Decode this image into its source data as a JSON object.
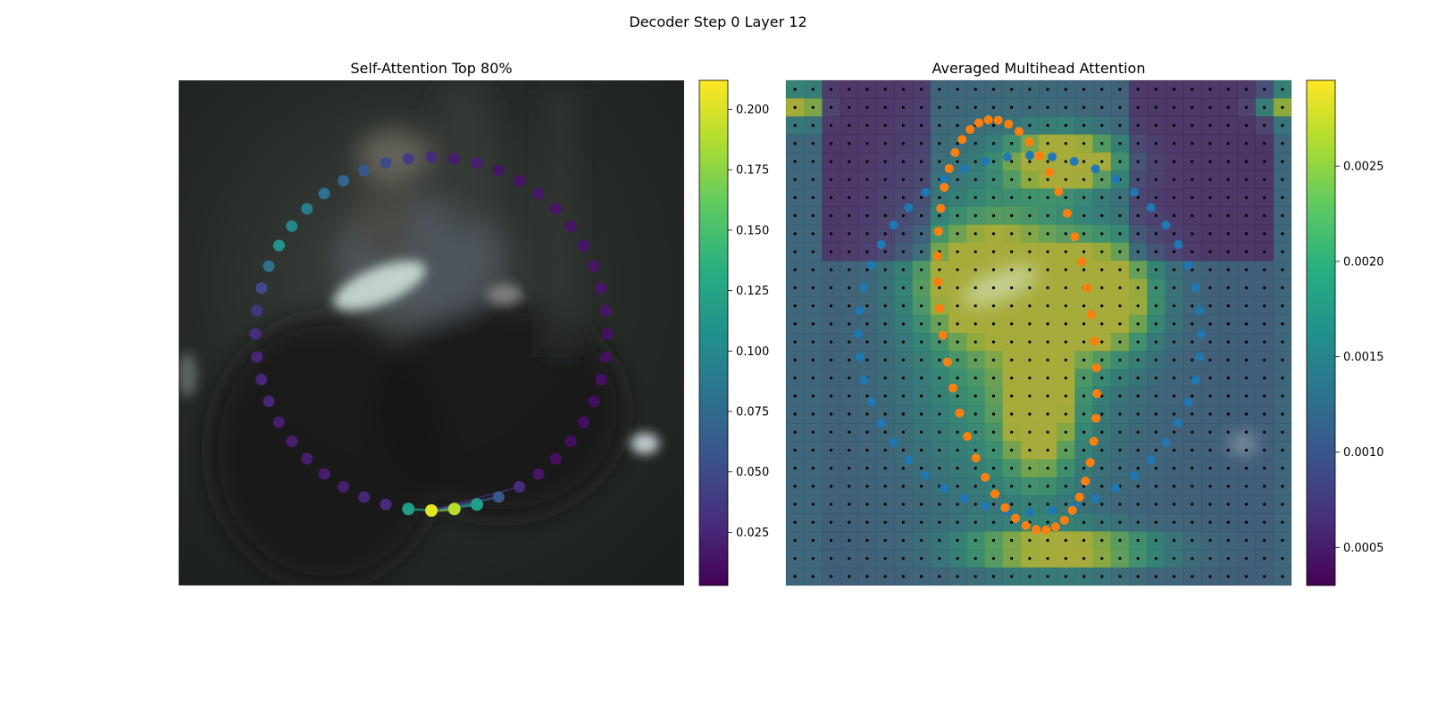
{
  "figure": {
    "suptitle": "Decoder Step 0 Layer 12"
  },
  "chart_data": [
    {
      "type": "scatter",
      "title": "Self-Attention Top 80%",
      "colormap": "viridis",
      "colorbar": {
        "range": [
          0.003,
          0.212
        ],
        "ticks": [
          0.025,
          0.05,
          0.075,
          0.1,
          0.125,
          0.15,
          0.175,
          0.2
        ],
        "tick_labels": [
          "0.025",
          "0.050",
          "0.075",
          "0.100",
          "0.125",
          "0.150",
          "0.175",
          "0.200"
        ]
      },
      "points_count": 48,
      "attention_values": [
        0.205,
        0.19,
        0.12,
        0.06,
        0.03,
        0.015,
        0.012,
        0.01,
        0.01,
        0.01,
        0.012,
        0.012,
        0.012,
        0.015,
        0.015,
        0.015,
        0.015,
        0.015,
        0.015,
        0.015,
        0.015,
        0.015,
        0.02,
        0.02,
        0.03,
        0.04,
        0.05,
        0.06,
        0.07,
        0.08,
        0.09,
        0.1,
        0.11,
        0.08,
        0.05,
        0.035,
        0.03,
        0.025,
        0.025,
        0.025,
        0.02,
        0.02,
        0.02,
        0.02,
        0.02,
        0.025,
        0.03,
        0.12
      ],
      "top_links_from_index": 0,
      "top_links_to": [
        1,
        2,
        3,
        47,
        4
      ]
    },
    {
      "type": "heatmap",
      "title": "Averaged Multihead Attention",
      "colormap": "viridis",
      "grid": [
        28,
        28
      ],
      "colorbar": {
        "range": [
          0.0003,
          0.00295
        ],
        "ticks": [
          0.0005,
          0.001,
          0.0015,
          0.002,
          0.0025
        ],
        "tick_labels": [
          "0.0005",
          "0.0010",
          "0.0015",
          "0.0020",
          "0.0025"
        ]
      },
      "series": [
        {
          "color": "#1f77b4",
          "points": 48
        },
        {
          "color": "#ff7f0e",
          "points": 48
        }
      ]
    }
  ]
}
